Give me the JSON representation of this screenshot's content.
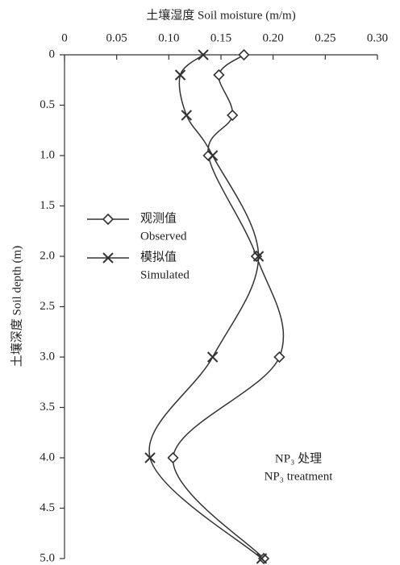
{
  "chart_data": {
    "type": "line",
    "x_label": "土壤湿度 Soil moisture (m/m)",
    "y_label": "土壤深度 Soil depth (m)",
    "y": [
      0,
      0.2,
      0.6,
      1.0,
      2.0,
      3.0,
      4.0,
      5.0
    ],
    "series": [
      {
        "name": "观测值",
        "name_en": "Observed",
        "marker": "diamond",
        "color": "#333333",
        "values": [
          0.172,
          0.148,
          0.161,
          0.138,
          0.184,
          0.206,
          0.104,
          0.191
        ]
      },
      {
        "name": "模拟值",
        "name_en": "Simulated",
        "marker": "x",
        "color": "#333333",
        "values": [
          0.133,
          0.111,
          0.117,
          0.142,
          0.186,
          0.142,
          0.082,
          0.189
        ]
      }
    ],
    "xlim": [
      0,
      0.3
    ],
    "xticks": [
      0,
      0.05,
      {
        "value": 0.1,
        "label": "0.10"
      },
      0.15,
      {
        "value": 0.2,
        "label": "0.20"
      },
      0.25,
      {
        "value": 0.3,
        "label": "0.30"
      }
    ],
    "ylim": [
      0,
      5.0
    ],
    "yticks": [
      0,
      0.5,
      {
        "value": 1.0,
        "label": "1.0"
      },
      1.5,
      {
        "value": 2.0,
        "label": "2.0"
      },
      2.5,
      {
        "value": 3.0,
        "label": "3.0"
      },
      3.5,
      {
        "value": 4.0,
        "label": "4.0"
      },
      4.5,
      {
        "value": 5.0,
        "label": "5.0"
      }
    ],
    "y_inverted": true,
    "annotations": [
      "NP₃ 处理",
      "NP₃ treatment"
    ]
  }
}
